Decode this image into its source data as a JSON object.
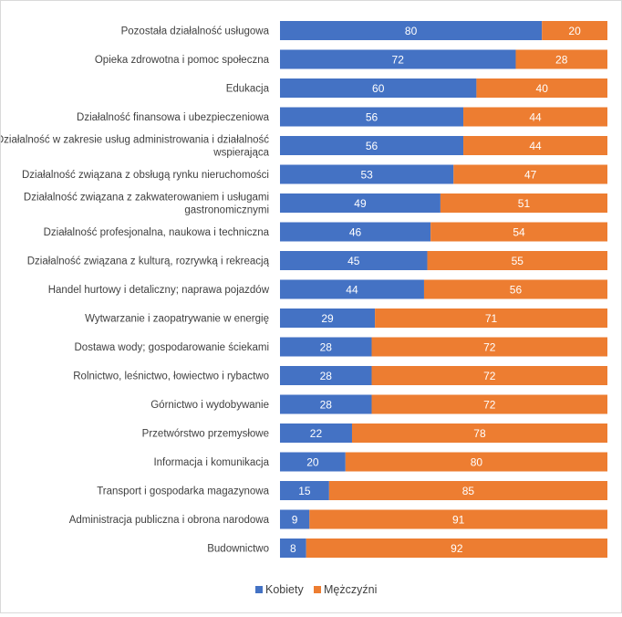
{
  "chart_data": {
    "type": "bar",
    "orientation": "horizontal",
    "stacked": "percent",
    "grid": false,
    "legend_position": "bottom",
    "xlim": [
      0,
      100
    ],
    "categories": [
      [
        "Pozostała działalność usługowa"
      ],
      [
        "Opieka zdrowotna i pomoc społeczna"
      ],
      [
        "Edukacja"
      ],
      [
        "Działalność finansowa i ubezpieczeniowa"
      ],
      [
        "Działalność w zakresie usług administrowania i działalność",
        "wspierająca"
      ],
      [
        "Działalność związana z obsługą rynku nieruchomości"
      ],
      [
        "Działalność związana z zakwaterowaniem i usługami",
        "gastronomicznymi"
      ],
      [
        "Działalność profesjonalna, naukowa i techniczna"
      ],
      [
        "Działalność związana z kulturą, rozrywką i rekreacją"
      ],
      [
        "Handel hurtowy i detaliczny; naprawa pojazdów"
      ],
      [
        "Wytwarzanie i zaopatrywanie w energię"
      ],
      [
        "Dostawa wody; gospodarowanie ściekami"
      ],
      [
        "Rolnictwo, leśnictwo, łowiectwo i rybactwo"
      ],
      [
        "Górnictwo i wydobywanie"
      ],
      [
        "Przetwórstwo przemysłowe"
      ],
      [
        "Informacja i komunikacja"
      ],
      [
        "Transport i gospodarka magazynowa"
      ],
      [
        "Administracja publiczna i obrona narodowa"
      ],
      [
        "Budownictwo"
      ]
    ],
    "series": [
      {
        "name": "Kobiety",
        "color": "#4472c4",
        "values": [
          80,
          72,
          60,
          56,
          56,
          53,
          49,
          46,
          45,
          44,
          29,
          28,
          28,
          28,
          22,
          20,
          15,
          9,
          8
        ]
      },
      {
        "name": "Mężczyźni",
        "color": "#ed7d31",
        "values": [
          20,
          28,
          40,
          44,
          44,
          47,
          51,
          54,
          55,
          56,
          71,
          72,
          72,
          72,
          78,
          80,
          85,
          91,
          92
        ]
      }
    ]
  }
}
